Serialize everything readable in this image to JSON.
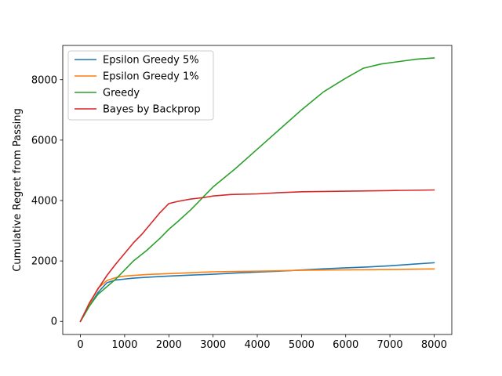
{
  "chart_data": {
    "type": "line",
    "xlabel": "",
    "ylabel": "Cumulative Regret from Passing",
    "xlim": [
      -400,
      8400
    ],
    "ylim": [
      -435,
      9135
    ],
    "xticks": [
      0,
      1000,
      2000,
      3000,
      4000,
      5000,
      6000,
      7000,
      8000
    ],
    "xtick_labels": [
      "0",
      "1000",
      "2000",
      "3000",
      "4000",
      "5000",
      "6000",
      "7000",
      "8000"
    ],
    "yticks": [
      0,
      2000,
      4000,
      6000,
      8000
    ],
    "ytick_labels": [
      "0",
      "2000",
      "4000",
      "6000",
      "8000"
    ],
    "grid": false,
    "legend_position": "upper-left",
    "series": [
      {
        "name": "Epsilon Greedy 5%",
        "color": "#1f77b4",
        "x": [
          0,
          200,
          400,
          600,
          800,
          1000,
          1200,
          1500,
          2000,
          2500,
          3000,
          3500,
          4000,
          4500,
          5000,
          5500,
          6000,
          6500,
          7000,
          7500,
          8000
        ],
        "y": [
          0,
          500,
          960,
          1280,
          1370,
          1400,
          1430,
          1460,
          1500,
          1530,
          1560,
          1600,
          1630,
          1660,
          1700,
          1740,
          1770,
          1800,
          1840,
          1890,
          1940
        ]
      },
      {
        "name": "Epsilon Greedy 1%",
        "color": "#ff7f0e",
        "x": [
          0,
          200,
          400,
          600,
          800,
          1000,
          1500,
          2000,
          2500,
          3000,
          3500,
          4000,
          4500,
          5000,
          5500,
          6000,
          6500,
          7000,
          7500,
          8000
        ],
        "y": [
          0,
          560,
          1100,
          1350,
          1450,
          1500,
          1550,
          1580,
          1610,
          1640,
          1650,
          1660,
          1675,
          1690,
          1700,
          1705,
          1710,
          1715,
          1725,
          1735
        ]
      },
      {
        "name": "Greedy",
        "color": "#2ca02c",
        "x": [
          0,
          200,
          400,
          600,
          800,
          1000,
          1200,
          1500,
          1800,
          2000,
          2200,
          2500,
          2800,
          3000,
          3500,
          4000,
          4500,
          5000,
          5500,
          6000,
          6400,
          6800,
          7200,
          7600,
          8000
        ],
        "y": [
          0,
          500,
          900,
          1150,
          1400,
          1700,
          2000,
          2350,
          2750,
          3050,
          3300,
          3700,
          4150,
          4450,
          5050,
          5700,
          6350,
          7000,
          7600,
          8050,
          8380,
          8520,
          8600,
          8680,
          8720
        ]
      },
      {
        "name": "Bayes by Backprop",
        "color": "#d62728",
        "x": [
          0,
          200,
          400,
          600,
          800,
          1000,
          1200,
          1400,
          1600,
          1800,
          2000,
          2200,
          2500,
          2800,
          3000,
          3400,
          4000,
          4500,
          5000,
          6000,
          7000,
          8000
        ],
        "y": [
          0,
          600,
          1080,
          1520,
          1900,
          2250,
          2600,
          2900,
          3250,
          3600,
          3900,
          3970,
          4050,
          4100,
          4150,
          4200,
          4220,
          4260,
          4290,
          4310,
          4330,
          4350
        ]
      }
    ]
  }
}
